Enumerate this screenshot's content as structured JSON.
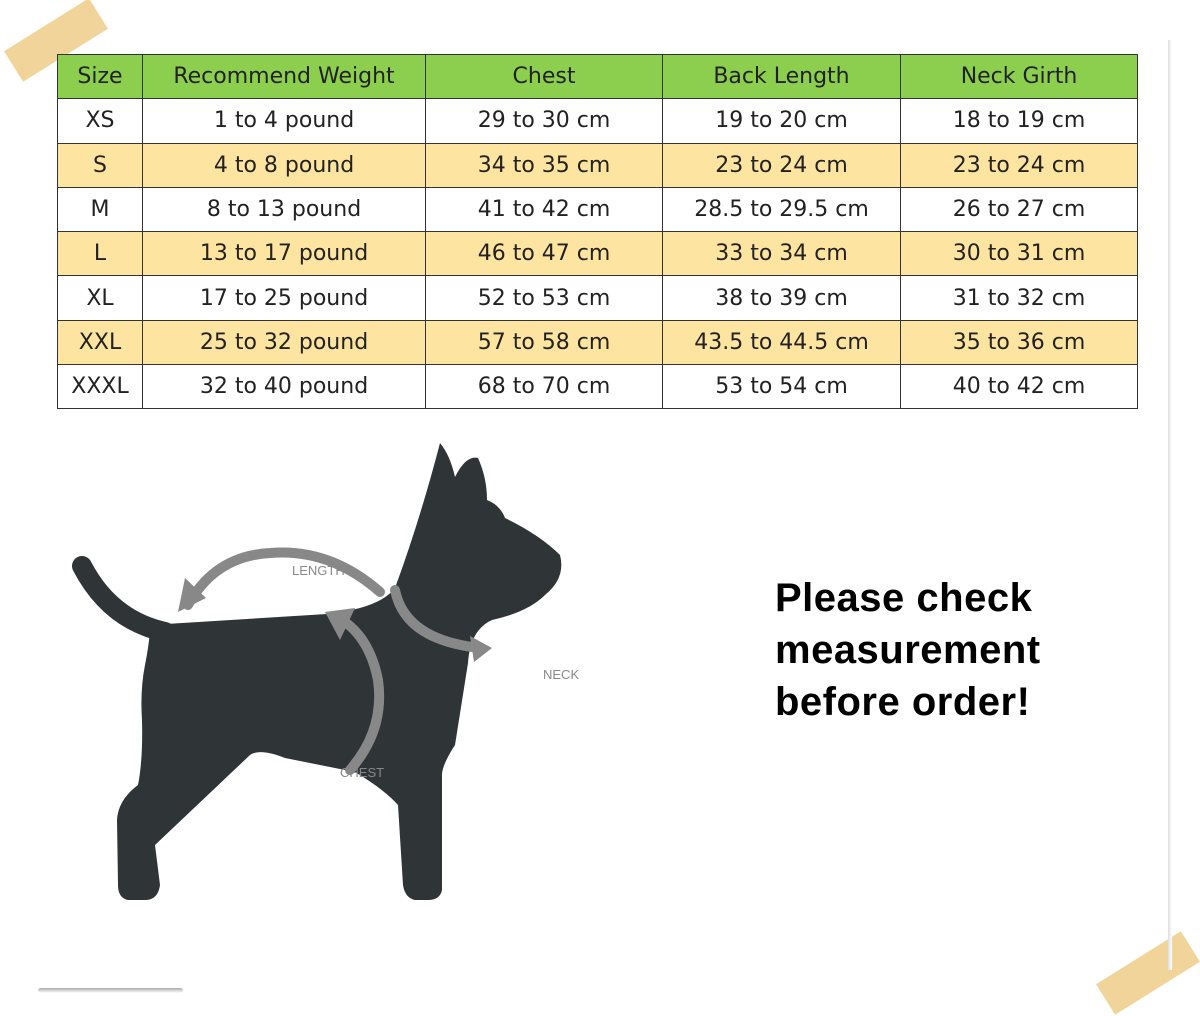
{
  "table": {
    "headers": [
      "Size",
      "Recommend Weight",
      "Chest",
      "Back Length",
      "Neck Girth"
    ],
    "rows": [
      [
        "XS",
        "1 to 4 pound",
        "29 to 30 cm",
        "19 to 20 cm",
        "18 to 19 cm"
      ],
      [
        "S",
        "4 to 8 pound",
        "34 to 35 cm",
        "23 to 24 cm",
        "23 to 24 cm"
      ],
      [
        "M",
        "8 to 13 pound",
        "41 to 42 cm",
        "28.5 to 29.5 cm",
        "26 to 27 cm"
      ],
      [
        "L",
        "13 to 17 pound",
        "46 to 47 cm",
        "33 to 34 cm",
        "30 to 31 cm"
      ],
      [
        "XL",
        "17 to 25 pound",
        "52 to 53 cm",
        "38 to 39 cm",
        "31 to 32 cm"
      ],
      [
        "XXL",
        "25 to 32 pound",
        "57 to 58 cm",
        "43.5 to 44.5 cm",
        "35 to 36 cm"
      ],
      [
        "XXXL",
        "32 to 40 pound",
        "68 to 70 cm",
        "53 to 54 cm",
        "40 to 42 cm"
      ]
    ]
  },
  "diagram": {
    "length_label": "LENGTH",
    "neck_label": "NECK",
    "chest_label": "CHEST"
  },
  "note": {
    "line1": "Please check",
    "line2": "measurement",
    "line3": "before order!"
  },
  "colors": {
    "header": "#8ccf4f",
    "alt_row": "#fde4a0",
    "dog": "#2f3437",
    "arrow": "#888888"
  }
}
